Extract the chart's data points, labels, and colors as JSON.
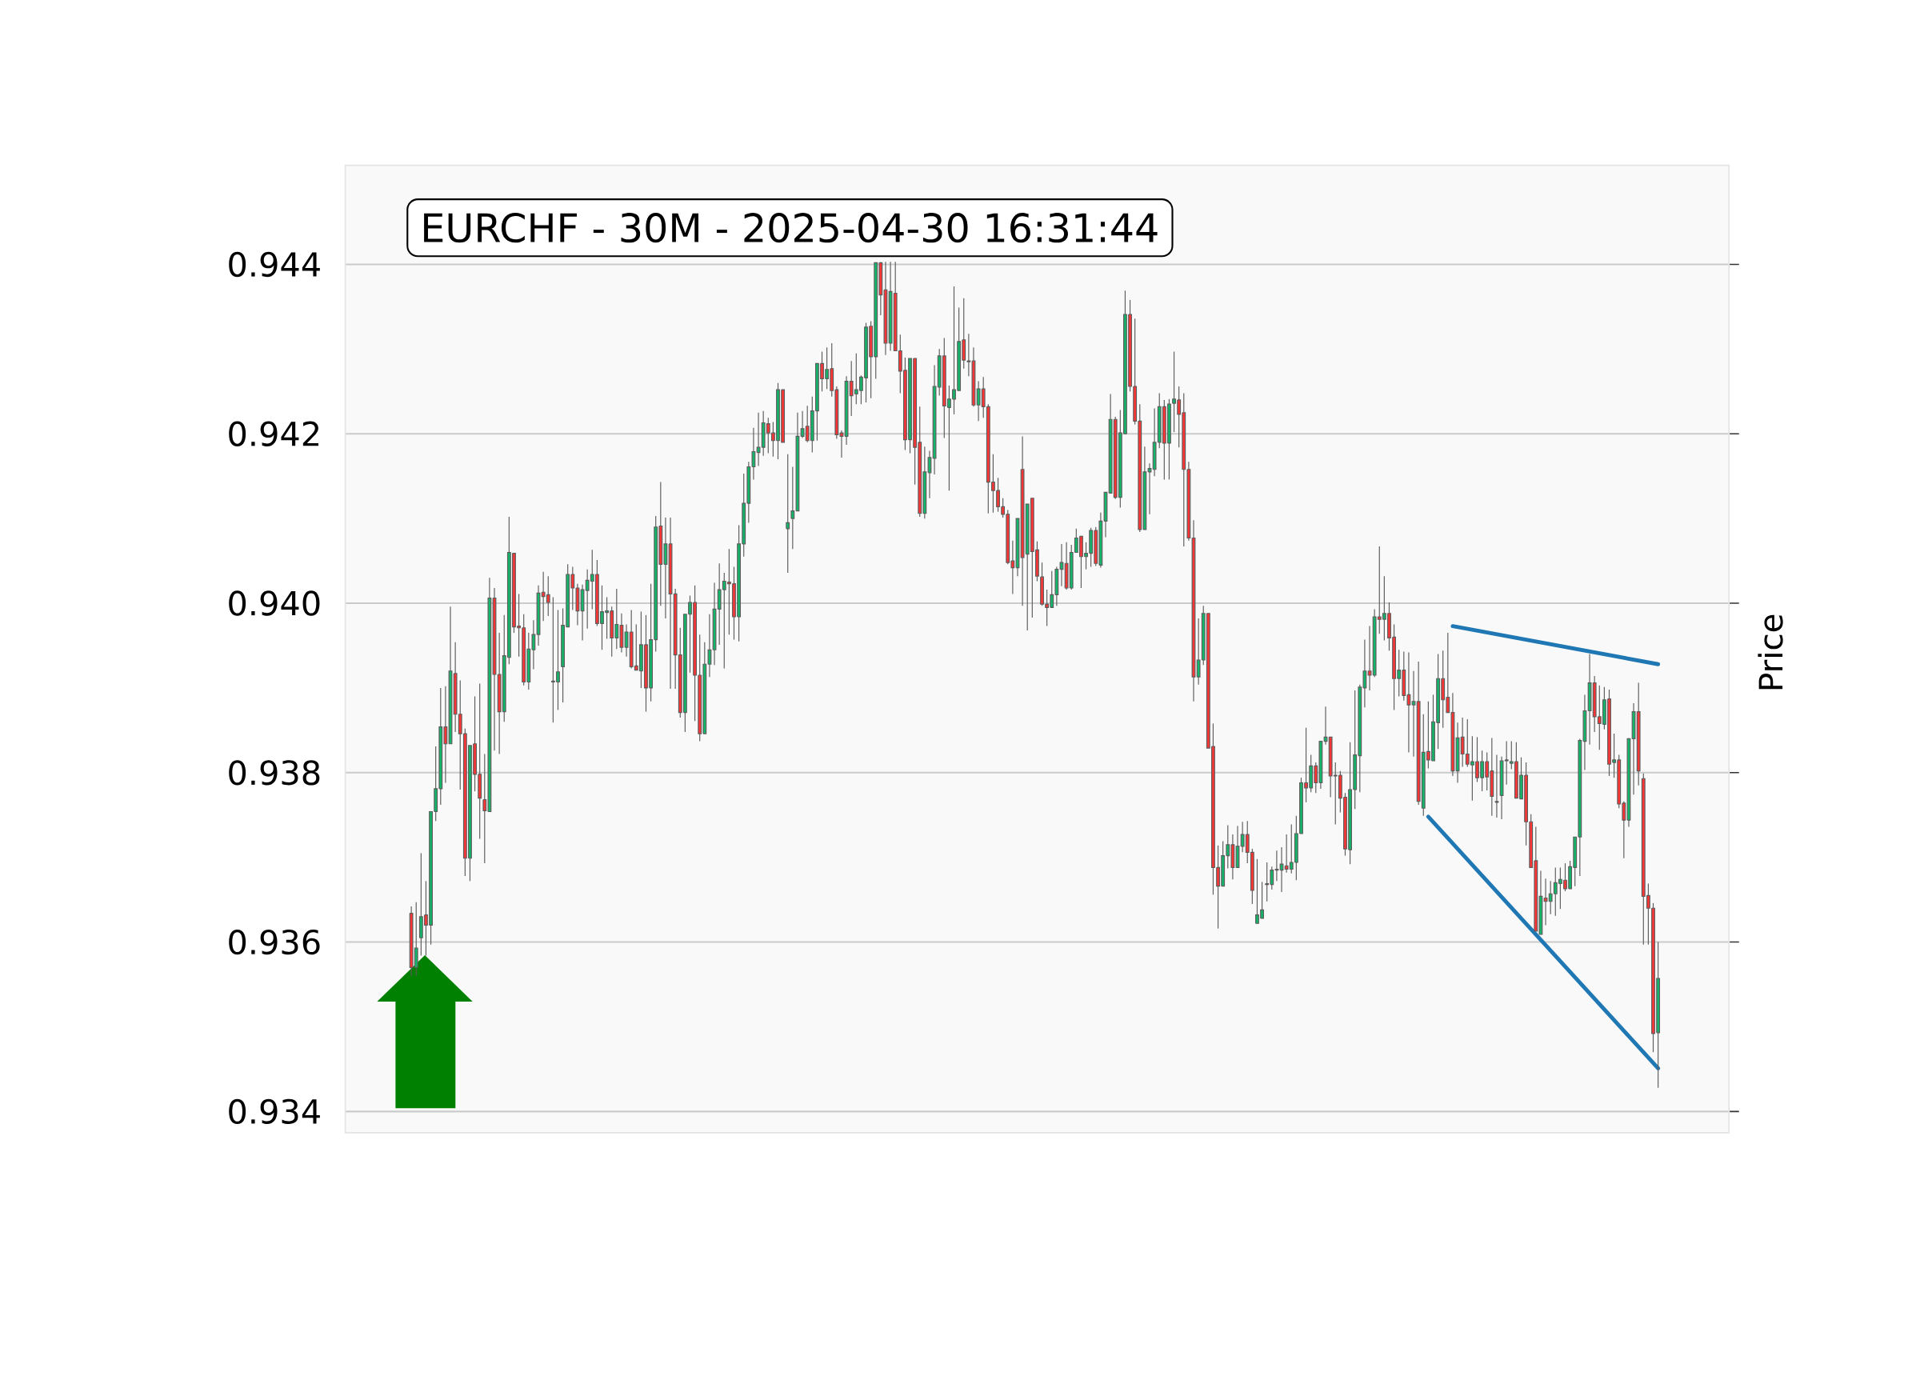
{
  "chart_data": {
    "type": "candlestick",
    "title": "EURCHF - 30M - 2025-04-30 16:31:44",
    "ylabel": "Price",
    "categories": [
      null,
      null,
      null,
      null,
      null,
      null,
      null,
      null,
      null,
      null,
      null,
      null,
      null,
      null,
      null,
      null,
      null,
      null,
      null,
      null,
      null,
      null,
      null,
      null,
      null,
      null,
      null,
      null,
      null,
      null,
      null,
      null,
      null,
      null,
      null,
      null,
      null,
      null,
      null,
      null,
      null,
      null,
      null,
      null,
      null,
      null,
      null,
      null,
      null,
      null,
      null,
      null,
      null,
      null,
      null,
      null,
      null,
      null,
      null,
      null,
      null,
      null,
      null,
      null,
      null,
      null,
      null,
      null,
      null,
      null,
      null,
      null,
      null,
      null,
      null,
      null,
      null,
      null,
      null,
      null,
      null,
      null,
      null,
      null,
      null,
      null,
      null,
      null,
      null,
      null,
      null,
      null,
      null,
      null,
      null,
      null,
      null,
      null,
      null,
      null,
      null,
      null,
      null,
      null,
      null,
      null,
      null,
      null,
      null,
      null,
      null,
      null,
      null,
      null,
      null,
      null,
      null,
      null,
      null,
      null,
      null,
      null,
      null,
      null,
      null,
      null,
      null,
      null,
      null,
      null,
      null,
      null,
      null,
      null,
      null,
      null,
      null,
      null,
      null,
      null,
      null,
      null,
      null,
      null,
      null,
      null,
      null,
      null,
      null,
      null,
      null,
      null,
      null,
      null,
      null,
      null,
      null,
      null,
      null,
      null,
      null,
      null,
      null,
      null,
      null,
      null,
      null,
      null,
      null,
      null,
      null,
      null,
      null,
      null,
      null,
      null,
      null,
      null,
      null,
      null,
      null,
      null,
      null,
      null,
      null,
      null,
      null,
      null,
      null,
      null,
      null,
      null,
      null,
      null,
      null,
      null,
      null,
      null,
      null,
      null,
      null,
      null,
      null,
      null,
      null,
      null,
      null,
      null,
      null,
      null,
      null,
      null,
      null,
      null,
      null,
      null,
      null,
      null,
      null,
      null,
      null,
      null,
      null,
      null,
      null,
      null,
      null,
      null,
      null,
      null,
      null,
      null,
      null,
      null,
      null,
      null,
      null,
      null,
      null,
      null,
      null,
      null,
      null,
      null,
      null,
      null,
      null,
      null,
      null,
      null,
      null,
      null,
      null,
      null,
      null,
      null,
      null,
      null,
      null,
      null,
      null,
      null,
      null,
      null,
      null,
      null,
      null,
      null,
      null,
      null,
      null,
      null,
      null,
      null,
      null,
      null,
      null,
      null,
      null,
      null,
      null,
      null,
      null
    ],
    "ohlc": [
      null,
      null,
      null,
      null,
      null,
      null,
      null,
      null,
      null,
      null,
      null,
      null,
      null,
      [
        0.93634,
        0.93642,
        0.9356,
        0.9357
      ],
      [
        0.9357,
        0.93647,
        0.9356,
        0.93593
      ],
      [
        0.93605,
        0.93705,
        0.93584,
        0.9363
      ],
      [
        0.93632,
        0.93672,
        0.93584,
        0.9362
      ],
      [
        0.9362,
        0.93754,
        0.93597,
        0.93754
      ],
      [
        0.93754,
        0.93831,
        0.93743,
        0.93781
      ],
      [
        0.93781,
        0.939,
        0.93762,
        0.93854
      ],
      [
        0.93854,
        0.93902,
        0.93788,
        0.93834
      ],
      [
        0.93834,
        0.93996,
        0.93834,
        0.9392
      ],
      [
        0.93917,
        0.93954,
        0.93848,
        0.93869
      ],
      [
        0.93869,
        0.93909,
        0.9378,
        0.93846
      ],
      [
        0.93846,
        0.93852,
        0.93678,
        0.93699
      ],
      [
        0.93699,
        0.93832,
        0.93672,
        0.93832
      ],
      [
        0.93834,
        0.9389,
        0.93778,
        0.93798
      ],
      [
        0.93798,
        0.93905,
        0.93722,
        0.9377
      ],
      [
        0.93768,
        0.93822,
        0.93693,
        0.93755
      ],
      [
        0.93754,
        0.9403,
        0.93754,
        0.94006
      ],
      [
        0.94006,
        0.94018,
        0.93826,
        0.93916
      ],
      [
        0.93916,
        0.93965,
        0.93822,
        0.93872
      ],
      [
        0.93872,
        0.93986,
        0.9386,
        0.93938
      ],
      [
        0.93936,
        0.94102,
        0.93928,
        0.9406
      ],
      [
        0.94059,
        0.94059,
        0.93965,
        0.93972
      ],
      [
        0.93973,
        0.94011,
        0.93937,
        0.93971
      ],
      [
        0.93971,
        0.93987,
        0.93903,
        0.93907
      ],
      [
        0.93907,
        0.93965,
        0.93898,
        0.93946
      ],
      [
        0.93945,
        0.9398,
        0.93922,
        0.93963
      ],
      [
        0.93963,
        0.94021,
        0.9395,
        0.94012
      ],
      [
        0.94013,
        0.94037,
        0.93979,
        0.94008
      ],
      [
        0.9401,
        0.94032,
        0.93985,
        0.94001
      ],
      [
        0.93908,
        0.94007,
        0.93859,
        0.93907
      ],
      [
        0.93907,
        0.93992,
        0.93874,
        0.93919
      ],
      [
        0.93925,
        0.93994,
        0.93883,
        0.93974
      ],
      [
        0.93972,
        0.94046,
        0.93972,
        0.94034
      ],
      [
        0.94034,
        0.94043,
        0.93992,
        0.94018
      ],
      [
        0.94018,
        0.94023,
        0.93974,
        0.93991
      ],
      [
        0.93991,
        0.94022,
        0.93956,
        0.94016
      ],
      [
        0.94015,
        0.9404,
        0.9397,
        0.94027
      ],
      [
        0.94026,
        0.94063,
        0.93993,
        0.94034
      ],
      [
        0.94034,
        0.94051,
        0.93973,
        0.93976
      ],
      [
        0.93976,
        0.94021,
        0.93945,
        0.9399
      ],
      [
        0.93989,
        0.94007,
        0.93958,
        0.93991
      ],
      [
        0.93991,
        0.93996,
        0.93937,
        0.93959
      ],
      [
        0.93959,
        0.94017,
        0.93946,
        0.93975
      ],
      [
        0.93974,
        0.93988,
        0.93942,
        0.93948
      ],
      [
        0.93948,
        0.93975,
        0.93937,
        0.93966
      ],
      [
        0.93966,
        0.93992,
        0.93923,
        0.93925
      ],
      [
        0.93926,
        0.93975,
        0.93921,
        0.93921
      ],
      [
        0.9392,
        0.9399,
        0.939,
        0.93951
      ],
      [
        0.93951,
        0.93986,
        0.93872,
        0.939
      ],
      [
        0.939,
        0.94023,
        0.93884,
        0.93957
      ],
      [
        0.93957,
        0.94103,
        0.93943,
        0.9409
      ],
      [
        0.94091,
        0.94143,
        0.93997,
        0.94046
      ],
      [
        0.94046,
        0.94101,
        0.93982,
        0.9407
      ],
      [
        0.9407,
        0.94101,
        0.93899,
        0.94011
      ],
      [
        0.94011,
        0.94017,
        0.93899,
        0.93939
      ],
      [
        0.93939,
        0.93971,
        0.93865,
        0.93871
      ],
      [
        0.93871,
        0.93987,
        0.93848,
        0.93987
      ],
      [
        0.93987,
        0.94009,
        0.93918,
        0.94001
      ],
      [
        0.94001,
        0.94021,
        0.93861,
        0.93915
      ],
      [
        0.93915,
        0.93963,
        0.93837,
        0.93846
      ],
      [
        0.93846,
        0.93954,
        0.93846,
        0.93928
      ],
      [
        0.93928,
        0.93987,
        0.93913,
        0.93945
      ],
      [
        0.93945,
        0.94024,
        0.93927,
        0.93993
      ],
      [
        0.93993,
        0.94047,
        0.93951,
        0.94016
      ],
      [
        0.94016,
        0.94036,
        0.93923,
        0.94026
      ],
      [
        0.94025,
        0.94064,
        0.93963,
        0.94023
      ],
      [
        0.94023,
        0.94043,
        0.93957,
        0.93984
      ],
      [
        0.93984,
        0.94092,
        0.93955,
        0.9407
      ],
      [
        0.9407,
        0.94153,
        0.94055,
        0.94118
      ],
      [
        0.94118,
        0.94167,
        0.94095,
        0.94161
      ],
      [
        0.94161,
        0.94207,
        0.94146,
        0.94179
      ],
      [
        0.94178,
        0.94225,
        0.94162,
        0.94184
      ],
      [
        0.94184,
        0.94227,
        0.94174,
        0.94213
      ],
      [
        0.94212,
        0.94219,
        0.94177,
        0.94201
      ],
      [
        0.94201,
        0.94214,
        0.94173,
        0.94192
      ],
      [
        0.94192,
        0.9426,
        0.9417,
        0.94252
      ],
      [
        0.94252,
        0.94252,
        0.9419,
        0.9419
      ],
      [
        0.94088,
        0.94176,
        0.94036,
        0.94095
      ],
      [
        0.941,
        0.94161,
        0.94064,
        0.94109
      ],
      [
        0.94109,
        0.94225,
        0.94109,
        0.94197
      ],
      [
        0.94197,
        0.94227,
        0.94195,
        0.94206
      ],
      [
        0.94209,
        0.94233,
        0.9419,
        0.94192
      ],
      [
        0.94192,
        0.94244,
        0.94178,
        0.94227
      ],
      [
        0.94227,
        0.94283,
        0.94192,
        0.94283
      ],
      [
        0.94283,
        0.94297,
        0.9425,
        0.94265
      ],
      [
        0.94265,
        0.94302,
        0.94253,
        0.94276
      ],
      [
        0.94277,
        0.94307,
        0.94244,
        0.94251
      ],
      [
        0.94252,
        0.94256,
        0.94194,
        0.94199
      ],
      [
        0.94201,
        0.94204,
        0.94172,
        0.94197
      ],
      [
        0.94197,
        0.94268,
        0.94187,
        0.94262
      ],
      [
        0.94262,
        0.94286,
        0.94221,
        0.94245
      ],
      [
        0.94247,
        0.94295,
        0.94235,
        0.94252
      ],
      [
        0.94251,
        0.94269,
        0.94235,
        0.94267
      ],
      [
        0.94266,
        0.94331,
        0.94237,
        0.94326
      ],
      [
        0.94327,
        0.94333,
        0.94242,
        0.94291
      ],
      [
        0.94291,
        0.94402,
        0.94265,
        0.94402
      ],
      [
        0.94402,
        0.94402,
        0.9434,
        0.94364
      ],
      [
        0.9437,
        0.94403,
        0.94293,
        0.94307
      ],
      [
        0.94307,
        0.94403,
        0.94298,
        0.94368
      ],
      [
        0.94366,
        0.94403,
        0.94298,
        0.94298
      ],
      [
        0.94298,
        0.94317,
        0.94248,
        0.94274
      ],
      [
        0.94275,
        0.9429,
        0.94181,
        0.94193
      ],
      [
        0.94193,
        0.94289,
        0.94177,
        0.94289
      ],
      [
        0.94289,
        0.94289,
        0.9414,
        0.94184
      ],
      [
        0.9419,
        0.94232,
        0.94102,
        0.94106
      ],
      [
        0.94106,
        0.94185,
        0.941,
        0.94155
      ],
      [
        0.94154,
        0.9418,
        0.94124,
        0.94172
      ],
      [
        0.94171,
        0.94281,
        0.94152,
        0.94256
      ],
      [
        0.94255,
        0.943,
        0.94245,
        0.94292
      ],
      [
        0.94292,
        0.94313,
        0.94195,
        0.94233
      ],
      [
        0.94231,
        0.94257,
        0.94133,
        0.94241
      ],
      [
        0.94241,
        0.94374,
        0.94223,
        0.94252
      ],
      [
        0.94251,
        0.94349,
        0.94251,
        0.94309
      ],
      [
        0.94311,
        0.9436,
        0.94277,
        0.94287
      ],
      [
        0.94286,
        0.94318,
        0.94268,
        0.94285
      ],
      [
        0.94286,
        0.94302,
        0.94232,
        0.94234
      ],
      [
        0.94234,
        0.94262,
        0.94215,
        0.94253
      ],
      [
        0.94253,
        0.94267,
        0.94219,
        0.94232
      ],
      [
        0.94232,
        0.94235,
        0.94106,
        0.94143
      ],
      [
        0.94143,
        0.94176,
        0.94107,
        0.94133
      ],
      [
        0.94133,
        0.94148,
        0.94108,
        0.94114
      ],
      [
        0.94114,
        0.94124,
        0.94101,
        0.94105
      ],
      [
        0.94105,
        0.9411,
        0.94046,
        0.94048
      ],
      [
        0.9405,
        0.94074,
        0.94011,
        0.94042
      ],
      [
        0.94042,
        0.941,
        0.94032,
        0.941
      ],
      [
        0.94158,
        0.94197,
        0.93997,
        0.94054
      ],
      [
        0.94058,
        0.94117,
        0.93968,
        0.94117
      ],
      [
        0.94124,
        0.94124,
        0.93983,
        0.94061
      ],
      [
        0.94063,
        0.94073,
        0.94026,
        0.94032
      ],
      [
        0.94031,
        0.94048,
        0.93997,
        0.93999
      ],
      [
        0.93999,
        0.94016,
        0.93973,
        0.93995
      ],
      [
        0.93995,
        0.94038,
        0.93995,
        0.9401
      ],
      [
        0.9401,
        0.94043,
        0.93997,
        0.9404
      ],
      [
        0.9404,
        0.9407,
        0.9402,
        0.94048
      ],
      [
        0.94047,
        0.94072,
        0.94016,
        0.94018
      ],
      [
        0.94018,
        0.94069,
        0.94016,
        0.9406
      ],
      [
        0.9406,
        0.94088,
        0.9406,
        0.94077
      ],
      [
        0.94079,
        0.94079,
        0.94018,
        0.94055
      ],
      [
        0.94055,
        0.94072,
        0.9404,
        0.94059
      ],
      [
        0.94059,
        0.94089,
        0.94043,
        0.94086
      ],
      [
        0.94086,
        0.9409,
        0.94044,
        0.94047
      ],
      [
        0.94045,
        0.94107,
        0.94042,
        0.94097
      ],
      [
        0.94097,
        0.94131,
        0.94078,
        0.94131
      ],
      [
        0.9413,
        0.94247,
        0.9413,
        0.94217
      ],
      [
        0.94217,
        0.9422,
        0.94123,
        0.94125
      ],
      [
        0.94125,
        0.94228,
        0.94113,
        0.94201
      ],
      [
        0.942,
        0.94369,
        0.942,
        0.94341
      ],
      [
        0.94341,
        0.94358,
        0.9425,
        0.94256
      ],
      [
        0.94256,
        0.94336,
        0.94211,
        0.94215
      ],
      [
        0.94215,
        0.94235,
        0.94084,
        0.94087
      ],
      [
        0.94087,
        0.94185,
        0.94087,
        0.94155
      ],
      [
        0.94155,
        0.94165,
        0.94105,
        0.94159
      ],
      [
        0.94158,
        0.9423,
        0.9415,
        0.9419
      ],
      [
        0.9419,
        0.94248,
        0.94183,
        0.94232
      ],
      [
        0.94232,
        0.9424,
        0.94146,
        0.94189
      ],
      [
        0.94189,
        0.94241,
        0.94146,
        0.94235
      ],
      [
        0.94236,
        0.94297,
        0.94202,
        0.94241
      ],
      [
        0.9424,
        0.94256,
        0.94184,
        0.94223
      ],
      [
        0.94225,
        0.94248,
        0.94067,
        0.94158
      ],
      [
        0.94158,
        0.94167,
        0.94074,
        0.94077
      ],
      [
        0.94077,
        0.94098,
        0.93884,
        0.93913
      ],
      [
        0.93913,
        0.93982,
        0.93904,
        0.93933
      ],
      [
        0.93933,
        0.93997,
        0.93927,
        0.93988
      ],
      [
        0.93988,
        0.93988,
        0.93829,
        0.93829
      ],
      [
        0.93831,
        0.93858,
        0.93656,
        0.93688
      ],
      [
        0.93688,
        0.93714,
        0.93616,
        0.93666
      ],
      [
        0.93666,
        0.93719,
        0.93666,
        0.93702
      ],
      [
        0.93702,
        0.93738,
        0.93687,
        0.93715
      ],
      [
        0.93715,
        0.93727,
        0.93674,
        0.93688
      ],
      [
        0.93688,
        0.93737,
        0.93688,
        0.93713
      ],
      [
        0.93713,
        0.93742,
        0.93706,
        0.93727
      ],
      [
        0.93727,
        0.93743,
        0.93693,
        0.93706
      ],
      [
        0.93706,
        0.9371,
        0.93645,
        0.93661
      ],
      [
        0.93622,
        0.93698,
        0.93622,
        0.93632
      ],
      [
        0.93628,
        0.93671,
        0.93628,
        0.93638
      ],
      [
        0.93669,
        0.93694,
        0.93648,
        0.93668
      ],
      [
        0.93668,
        0.93689,
        0.93662,
        0.93685
      ],
      [
        0.93685,
        0.93708,
        0.93672,
        0.93686
      ],
      [
        0.93685,
        0.93712,
        0.93659,
        0.93692
      ],
      [
        0.9369,
        0.93727,
        0.93682,
        0.93686
      ],
      [
        0.93686,
        0.93739,
        0.93681,
        0.93694
      ],
      [
        0.93694,
        0.93749,
        0.93673,
        0.93728
      ],
      [
        0.93728,
        0.93794,
        0.93728,
        0.93788
      ],
      [
        0.93788,
        0.93853,
        0.93765,
        0.93782
      ],
      [
        0.93782,
        0.93821,
        0.93777,
        0.93808
      ],
      [
        0.93808,
        0.93812,
        0.93776,
        0.93788
      ],
      [
        0.93788,
        0.93837,
        0.93781,
        0.93837
      ],
      [
        0.93837,
        0.93878,
        0.93833,
        0.93842
      ],
      [
        0.93842,
        0.93842,
        0.93771,
        0.93796
      ],
      [
        0.93797,
        0.93812,
        0.93739,
        0.93796
      ],
      [
        0.93797,
        0.93802,
        0.93753,
        0.9377
      ],
      [
        0.93771,
        0.93776,
        0.93702,
        0.9371
      ],
      [
        0.93709,
        0.93836,
        0.93692,
        0.9378
      ],
      [
        0.9378,
        0.93897,
        0.93757,
        0.93821
      ],
      [
        0.9382,
        0.93904,
        0.93777,
        0.93901
      ],
      [
        0.939,
        0.93957,
        0.93877,
        0.9392
      ],
      [
        0.9392,
        0.93973,
        0.93897,
        0.93915
      ],
      [
        0.93915,
        0.93993,
        0.93913,
        0.93984
      ],
      [
        0.93984,
        0.94067,
        0.93964,
        0.93981
      ],
      [
        0.93981,
        0.94032,
        0.93956,
        0.93988
      ],
      [
        0.93988,
        0.94001,
        0.93944,
        0.93959
      ],
      [
        0.9396,
        0.93975,
        0.93874,
        0.93911
      ],
      [
        0.93911,
        0.93945,
        0.9389,
        0.93921
      ],
      [
        0.93921,
        0.93943,
        0.93885,
        0.93891
      ],
      [
        0.93892,
        0.93942,
        0.93824,
        0.9388
      ],
      [
        0.9388,
        0.9392,
        0.93819,
        0.93884
      ],
      [
        0.93884,
        0.93931,
        0.93762,
        0.93766
      ],
      [
        0.93758,
        0.93869,
        0.93749,
        0.93824
      ],
      [
        0.93825,
        0.93884,
        0.93805,
        0.93815
      ],
      [
        0.93814,
        0.93892,
        0.93814,
        0.9386
      ],
      [
        0.93859,
        0.9394,
        0.93828,
        0.93911
      ],
      [
        0.93911,
        0.93944,
        0.93853,
        0.93886
      ],
      [
        0.93889,
        0.93965,
        0.93871,
        0.93871
      ],
      [
        0.93871,
        0.93894,
        0.93796,
        0.93802
      ],
      [
        0.93802,
        0.93859,
        0.93788,
        0.93841
      ],
      [
        0.93842,
        0.93865,
        0.93807,
        0.93822
      ],
      [
        0.93822,
        0.93863,
        0.93807,
        0.9381
      ],
      [
        0.93809,
        0.93843,
        0.93767,
        0.93813
      ],
      [
        0.93813,
        0.93842,
        0.93789,
        0.93794
      ],
      [
        0.93794,
        0.93826,
        0.93778,
        0.93813
      ],
      [
        0.93813,
        0.93824,
        0.93779,
        0.93795
      ],
      [
        0.93802,
        0.93841,
        0.93749,
        0.93772
      ],
      [
        0.93765,
        0.93821,
        0.93747,
        0.93766
      ],
      [
        0.93773,
        0.93819,
        0.93745,
        0.93814
      ],
      [
        0.93815,
        0.93837,
        0.93786,
        0.93814
      ],
      [
        0.93811,
        0.93837,
        0.93804,
        0.93813
      ],
      [
        0.93813,
        0.93836,
        0.9377,
        0.9377
      ],
      [
        0.93769,
        0.93818,
        0.93769,
        0.93797
      ],
      [
        0.93797,
        0.93812,
        0.93714,
        0.93742
      ],
      [
        0.93742,
        0.93751,
        0.93688,
        0.93688
      ],
      [
        0.93696,
        0.93736,
        0.93613,
        0.93613
      ],
      [
        0.93609,
        0.93684,
        0.93609,
        0.93654
      ],
      [
        0.93652,
        0.93675,
        0.9362,
        0.93648
      ],
      [
        0.93648,
        0.93672,
        0.93633,
        0.93657
      ],
      [
        0.93657,
        0.93688,
        0.93631,
        0.9367
      ],
      [
        0.93669,
        0.93688,
        0.93639,
        0.93674
      ],
      [
        0.93673,
        0.93693,
        0.9366,
        0.93663
      ],
      [
        0.93663,
        0.93696,
        0.93663,
        0.93689
      ],
      [
        0.93688,
        0.93724,
        0.93666,
        0.93724
      ],
      [
        0.93724,
        0.9384,
        0.93678,
        0.93838
      ],
      [
        0.93837,
        0.93892,
        0.93803,
        0.93873
      ],
      [
        0.93873,
        0.9394,
        0.93833,
        0.93906
      ],
      [
        0.93906,
        0.93914,
        0.93848,
        0.93866
      ],
      [
        0.93866,
        0.93903,
        0.93827,
        0.93858
      ],
      [
        0.93857,
        0.93901,
        0.93851,
        0.93886
      ],
      [
        0.93887,
        0.93898,
        0.93796,
        0.9381
      ],
      [
        0.93812,
        0.93846,
        0.93794,
        0.93815
      ],
      [
        0.93815,
        0.93821,
        0.93758,
        0.93763
      ],
      [
        0.93764,
        0.93766,
        0.93699,
        0.93744
      ],
      [
        0.93744,
        0.9384,
        0.93736,
        0.9384
      ],
      [
        0.9384,
        0.93882,
        0.93774,
        0.93872
      ],
      [
        0.93872,
        0.93906,
        0.93785,
        0.93802
      ],
      [
        0.93793,
        0.93799,
        0.93597,
        0.93654
      ],
      [
        0.93655,
        0.93669,
        0.93597,
        0.9364
      ],
      [
        0.9364,
        0.93646,
        0.9347,
        0.93492
      ],
      [
        0.93493,
        0.936,
        0.93428,
        0.93557
      ],
      null,
      null,
      null,
      null,
      null,
      null,
      null,
      null,
      null,
      null,
      null,
      null,
      null,
      null
    ],
    "colors": [
      null,
      null,
      null,
      null,
      null,
      null,
      null,
      null,
      null,
      null,
      null,
      null,
      null,
      "#ff3535",
      "#12b76a",
      "#12b76a",
      "#ff3535",
      "#12b76a",
      "#12b76a",
      "#12b76a",
      "#ff3535",
      "#12b76a",
      "#ff3535",
      "#ff3535",
      "#ff3535",
      "#12b76a",
      "#ff3535",
      "#ff3535",
      "#ff3535",
      "#12b76a",
      "#ff3535",
      "#ff3535",
      "#12b76a",
      "#12b76a",
      "#ff3535",
      "#ff3535",
      "#ff3535",
      "#12b76a",
      "#12b76a",
      "#12b76a",
      "#ff3535",
      "#ff3535",
      "#ff3535",
      "#12b76a",
      "#12b76a",
      "#12b76a",
      "#ff3535",
      "#ff3535",
      "#12b76a",
      "#12b76a",
      "#12b76a",
      "#ff3535",
      "#12b76a",
      "#12b76a",
      "#ff3535",
      "#12b76a",
      "#ff3535",
      "#12b76a",
      "#ff3535",
      "#ff3535",
      "#12b76a",
      "#ff3535",
      "#12b76a",
      "#12b76a",
      "#ff3535",
      "#12b76a",
      "#ff3535",
      "#ff3535",
      "#ff3535",
      "#12b76a",
      "#12b76a",
      "#ff3535",
      "#ff3535",
      "#12b76a",
      "#12b76a",
      "#12b76a",
      "#12b76a",
      "#12b76a",
      "#ff3535",
      "#ff3535",
      "#12b76a",
      "#12b76a",
      "#12b76a",
      "#12b76a",
      "#12b76a",
      "#12b76a",
      "#ff3535",
      "#ff3535",
      "#12b76a",
      "#ff3535",
      "#12b76a",
      "#12b76a",
      "#12b76a",
      "#12b76a",
      "#ff3535",
      "#12b76a",
      "#12b76a",
      "#ff3535",
      "#12b76a",
      "#ff3535",
      "#ff3535",
      "#ff3535",
      "#12b76a",
      "#ff3535",
      "#12b76a",
      "#12b76a",
      "#12b76a",
      "#ff3535",
      "#12b76a",
      "#ff3535",
      "#ff3535",
      "#12b76a",
      "#ff3535",
      "#ff3535",
      "#ff3535",
      "#12b76a",
      "#ff3535",
      "#ff3535",
      "#12b76a",
      "#12b76a",
      "#12b76a",
      "#12b76a",
      "#ff3535",
      "#12b76a",
      "#12b76a",
      "#12b76a",
      "#ff3535",
      "#ff3535",
      "#ff3535",
      "#12b76a",
      "#ff3535",
      "#ff3535",
      "#ff3535",
      "#ff3535",
      "#ff3535",
      "#ff3535",
      "#ff3535",
      "#12b76a",
      "#ff3535",
      "#12b76a",
      "#ff3535",
      "#ff3535",
      "#ff3535",
      "#ff3535",
      "#12b76a",
      "#12b76a",
      "#12b76a",
      "#ff3535",
      "#12b76a",
      "#12b76a",
      "#ff3535",
      "#12b76a",
      "#12b76a",
      "#ff3535",
      "#12b76a",
      "#12b76a",
      "#12b76a",
      "#ff3535",
      "#12b76a",
      "#12b76a",
      "#ff3535",
      "#ff3535",
      "#ff3535",
      "#12b76a",
      "#12b76a",
      "#12b76a",
      "#12b76a",
      "#ff3535",
      "#12b76a",
      "#12b76a",
      "#ff3535",
      "#ff3535",
      "#ff3535",
      "#ff3535",
      "#12b76a",
      "#12b76a",
      "#ff3535",
      "#ff3535",
      "#ff3535",
      "#12b76a",
      "#12b76a",
      "#ff3535",
      "#12b76a",
      "#12b76a",
      "#ff3535",
      "#ff3535",
      "#12b76a",
      "#12b76a",
      "#ff3535",
      "#12b76a",
      "#12b76a",
      "#12b76a",
      "#ff3535",
      "#12b76a",
      "#12b76a",
      "#12b76a",
      "#ff3535",
      "#12b76a",
      "#ff3535",
      "#12b76a",
      "#12b76a",
      "#ff3535",
      "#ff3535",
      "#ff3535",
      "#ff3535",
      "#12b76a",
      "#12b76a",
      "#12b76a",
      "#12b76a",
      "#ff3535",
      "#12b76a",
      "#ff3535",
      "#12b76a",
      "#ff3535",
      "#ff3535",
      "#12b76a",
      "#ff3535",
      "#ff3535",
      "#12b76a",
      "#ff3535",
      "#12b76a",
      "#ff3535",
      "#12b76a",
      "#12b76a",
      "#ff3535",
      "#ff3535",
      "#ff3535",
      "#12b76a",
      "#ff3535",
      "#ff3535",
      "#12b76a",
      "#ff3535",
      "#12b76a",
      "#ff3535",
      "#ff3535",
      "#12b76a",
      "#12b76a",
      "#ff3535",
      "#12b76a",
      "#ff3535",
      "#12b76a",
      "#ff3535",
      "#ff3535",
      "#ff3535",
      "#12b76a",
      "#ff3535",
      "#12b76a",
      "#12b76a",
      "#12b76a",
      "#ff3535",
      "#12b76a",
      "#12b76a",
      "#12b76a",
      "#12b76a",
      "#12b76a",
      "#ff3535",
      "#ff3535",
      "#12b76a",
      "#ff3535",
      "#12b76a",
      "#ff3535",
      "#ff3535",
      "#12b76a",
      "#12b76a",
      "#ff3535",
      "#ff3535",
      "#ff3535",
      "#ff3535",
      "#12b76a",
      null,
      null,
      null,
      null,
      null,
      null,
      null,
      null,
      null,
      null,
      null,
      null,
      null,
      null
    ],
    "series": [
      {
        "type": "line",
        "color": "#1f77b4",
        "values": [
          null,
          null,
          null,
          null,
          null,
          null,
          null,
          null,
          null,
          null,
          null,
          null,
          null,
          null,
          null,
          null,
          null,
          null,
          null,
          null,
          null,
          null,
          null,
          null,
          null,
          null,
          null,
          null,
          null,
          null,
          null,
          null,
          null,
          null,
          null,
          null,
          null,
          null,
          null,
          null,
          null,
          null,
          null,
          null,
          null,
          null,
          null,
          null,
          null,
          null,
          null,
          null,
          null,
          null,
          null,
          null,
          null,
          null,
          null,
          null,
          null,
          null,
          null,
          null,
          null,
          null,
          null,
          null,
          null,
          null,
          null,
          null,
          null,
          null,
          null,
          null,
          null,
          null,
          null,
          null,
          null,
          null,
          null,
          null,
          null,
          null,
          null,
          null,
          null,
          null,
          null,
          null,
          null,
          null,
          null,
          null,
          null,
          null,
          null,
          null,
          null,
          null,
          null,
          null,
          null,
          null,
          null,
          null,
          null,
          null,
          null,
          null,
          null,
          null,
          null,
          null,
          null,
          null,
          null,
          null,
          null,
          null,
          null,
          null,
          null,
          null,
          null,
          null,
          null,
          null,
          null,
          null,
          null,
          null,
          null,
          null,
          null,
          null,
          null,
          null,
          null,
          null,
          null,
          null,
          null,
          null,
          null,
          null,
          null,
          null,
          null,
          null,
          null,
          null,
          null,
          null,
          null,
          null,
          null,
          null,
          null,
          null,
          null,
          null,
          null,
          null,
          null,
          null,
          null,
          null,
          null,
          null,
          null,
          null,
          null,
          null,
          null,
          null,
          null,
          null,
          null,
          null,
          null,
          null,
          null,
          null,
          null,
          null,
          null,
          null,
          null,
          null,
          null,
          null,
          null,
          null,
          null,
          null,
          null,
          null,
          null,
          null,
          null,
          null,
          null,
          null,
          null,
          null,
          null,
          null,
          null,
          null,
          null,
          null,
          null,
          null,
          null,
          null,
          null,
          null,
          null,
          null,
          null,
          null,
          null,
          null,
          0.93973,
          null,
          null,
          null,
          null,
          null,
          null,
          null,
          null,
          null,
          null,
          null,
          null,
          null,
          null,
          null,
          null,
          null,
          null,
          null,
          null,
          null,
          null,
          null,
          null,
          null,
          null,
          null,
          null,
          null,
          null,
          null,
          null,
          null,
          null,
          null,
          null,
          null,
          null,
          null,
          null,
          null,
          0.93928,
          null,
          null,
          null,
          null,
          null,
          null,
          null,
          null,
          null,
          null,
          null,
          null,
          null,
          null
        ]
      },
      {
        "type": "line",
        "color": "#1f77b4",
        "values": [
          null,
          null,
          null,
          null,
          null,
          null,
          null,
          null,
          null,
          null,
          null,
          null,
          null,
          null,
          null,
          null,
          null,
          null,
          null,
          null,
          null,
          null,
          null,
          null,
          null,
          null,
          null,
          null,
          null,
          null,
          null,
          null,
          null,
          null,
          null,
          null,
          null,
          null,
          null,
          null,
          null,
          null,
          null,
          null,
          null,
          null,
          null,
          null,
          null,
          null,
          null,
          null,
          null,
          null,
          null,
          null,
          null,
          null,
          null,
          null,
          null,
          null,
          null,
          null,
          null,
          null,
          null,
          null,
          null,
          null,
          null,
          null,
          null,
          null,
          null,
          null,
          null,
          null,
          null,
          null,
          null,
          null,
          null,
          null,
          null,
          null,
          null,
          null,
          null,
          null,
          null,
          null,
          null,
          null,
          null,
          null,
          null,
          null,
          null,
          null,
          null,
          null,
          null,
          null,
          null,
          null,
          null,
          null,
          null,
          null,
          null,
          null,
          null,
          null,
          null,
          null,
          null,
          null,
          null,
          null,
          null,
          null,
          null,
          null,
          null,
          null,
          null,
          null,
          null,
          null,
          null,
          null,
          null,
          null,
          null,
          null,
          null,
          null,
          null,
          null,
          null,
          null,
          null,
          null,
          null,
          null,
          null,
          null,
          null,
          null,
          null,
          null,
          null,
          null,
          null,
          null,
          null,
          null,
          null,
          null,
          null,
          null,
          null,
          null,
          null,
          null,
          null,
          null,
          null,
          null,
          null,
          null,
          null,
          null,
          null,
          null,
          null,
          null,
          null,
          null,
          null,
          null,
          null,
          null,
          null,
          null,
          null,
          null,
          null,
          null,
          null,
          null,
          null,
          null,
          null,
          null,
          null,
          null,
          null,
          null,
          null,
          null,
          null,
          null,
          null,
          null,
          null,
          null,
          null,
          null,
          null,
          null,
          null,
          null,
          null,
          null,
          null,
          null,
          null,
          null,
          null,
          0.93748,
          null,
          null,
          null,
          null,
          null,
          null,
          null,
          null,
          null,
          null,
          null,
          null,
          null,
          null,
          null,
          null,
          null,
          null,
          null,
          null,
          null,
          null,
          null,
          null,
          null,
          null,
          null,
          null,
          null,
          null,
          null,
          null,
          null,
          null,
          null,
          null,
          null,
          null,
          null,
          null,
          null,
          null,
          null,
          null,
          null,
          null,
          0.93451,
          null,
          null,
          null,
          null,
          null,
          null,
          null,
          null,
          null,
          null,
          null,
          null,
          null,
          null
        ]
      }
    ],
    "ylim": [
      0.93375,
      0.94517
    ],
    "yticks": [
      0.934,
      0.936,
      0.938,
      {
        "value": 0.94,
        "label": "0.940"
      },
      0.942,
      0.944
    ],
    "grid": "y",
    "tick_labels": "y"
  }
}
